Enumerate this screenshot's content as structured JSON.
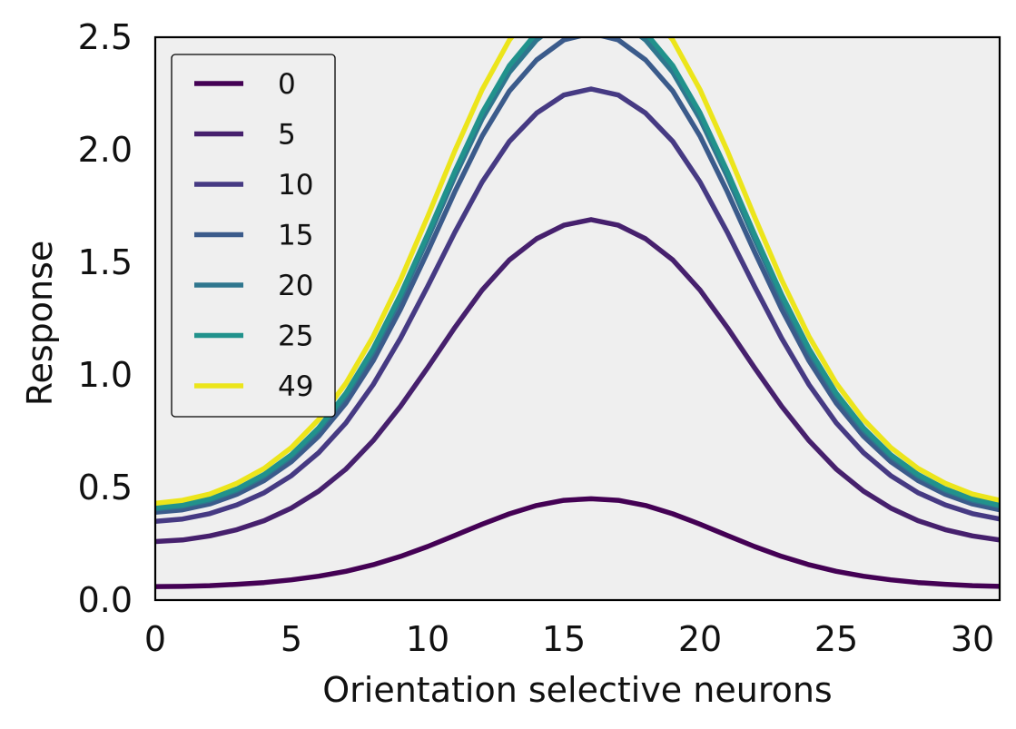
{
  "chart_data": {
    "type": "line",
    "xlabel": "Orientation selective neurons",
    "ylabel": "Response",
    "xlim": [
      0,
      31
    ],
    "ylim": [
      0,
      2.5
    ],
    "xticks": [
      0,
      5,
      10,
      15,
      20,
      25,
      30
    ],
    "yticks": [
      0.0,
      0.5,
      1.0,
      1.5,
      2.0,
      2.5
    ],
    "xtick_labels": [
      "0",
      "5",
      "10",
      "15",
      "20",
      "25",
      "30"
    ],
    "ytick_labels": [
      "0.0",
      "0.5",
      "1.0",
      "1.5",
      "2.0",
      "2.5"
    ],
    "grid": false,
    "plot_background": "#efefef",
    "legend_position": "upper-left",
    "x": [
      0,
      1,
      2,
      3,
      4,
      5,
      6,
      7,
      8,
      9,
      10,
      11,
      12,
      13,
      14,
      15,
      16,
      17,
      18,
      19,
      20,
      21,
      22,
      23,
      24,
      25,
      26,
      27,
      28,
      29,
      30,
      31
    ],
    "series": [
      {
        "name": "0",
        "color": "#440154",
        "values": [
          0.06,
          0.061,
          0.064,
          0.07,
          0.078,
          0.09,
          0.106,
          0.128,
          0.157,
          0.194,
          0.238,
          0.287,
          0.337,
          0.383,
          0.42,
          0.443,
          0.45,
          0.443,
          0.42,
          0.383,
          0.337,
          0.287,
          0.238,
          0.194,
          0.157,
          0.128,
          0.106,
          0.09,
          0.078,
          0.07,
          0.064,
          0.061
        ]
      },
      {
        "name": "5",
        "color": "#46206d",
        "values": [
          0.26,
          0.267,
          0.285,
          0.313,
          0.353,
          0.409,
          0.484,
          0.582,
          0.708,
          0.86,
          1.032,
          1.211,
          1.377,
          1.511,
          1.605,
          1.665,
          1.69,
          1.665,
          1.605,
          1.511,
          1.377,
          1.211,
          1.032,
          0.86,
          0.708,
          0.582,
          0.484,
          0.409,
          0.353,
          0.313,
          0.285,
          0.267
        ]
      },
      {
        "name": "10",
        "color": "#463a83",
        "values": [
          0.35,
          0.36,
          0.384,
          0.423,
          0.477,
          0.553,
          0.655,
          0.787,
          0.957,
          1.162,
          1.393,
          1.634,
          1.857,
          2.037,
          2.163,
          2.243,
          2.27,
          2.243,
          2.163,
          2.037,
          1.857,
          1.634,
          1.393,
          1.162,
          0.957,
          0.787,
          0.655,
          0.553,
          0.477,
          0.423,
          0.384,
          0.36
        ]
      },
      {
        "name": "15",
        "color": "#3b5b8b",
        "values": [
          0.39,
          0.401,
          0.427,
          0.47,
          0.531,
          0.615,
          0.728,
          0.875,
          1.063,
          1.291,
          1.547,
          1.814,
          2.061,
          2.261,
          2.399,
          2.488,
          2.518,
          2.488,
          2.399,
          2.261,
          2.061,
          1.814,
          1.547,
          1.291,
          1.063,
          0.875,
          0.728,
          0.615,
          0.531,
          0.47,
          0.427,
          0.401
        ]
      },
      {
        "name": "20",
        "color": "#2f768e",
        "values": [
          0.405,
          0.417,
          0.443,
          0.488,
          0.551,
          0.638,
          0.755,
          0.907,
          1.103,
          1.339,
          1.604,
          1.881,
          2.137,
          2.344,
          2.488,
          2.58,
          2.611,
          2.58,
          2.488,
          2.344,
          2.137,
          1.881,
          1.604,
          1.339,
          1.103,
          0.907,
          0.755,
          0.638,
          0.551,
          0.488,
          0.443,
          0.417
        ]
      },
      {
        "name": "25",
        "color": "#21928c",
        "values": [
          0.41,
          0.422,
          0.449,
          0.494,
          0.558,
          0.646,
          0.765,
          0.919,
          1.117,
          1.356,
          1.625,
          1.905,
          2.164,
          2.374,
          2.52,
          2.613,
          2.645,
          2.613,
          2.52,
          2.374,
          2.164,
          1.905,
          1.625,
          1.356,
          1.117,
          0.919,
          0.765,
          0.646,
          0.558,
          0.494,
          0.449,
          0.422
        ]
      },
      {
        "name": "49",
        "color": "#ece51b",
        "values": [
          0.43,
          0.443,
          0.471,
          0.519,
          0.585,
          0.678,
          0.802,
          0.963,
          1.171,
          1.421,
          1.703,
          1.996,
          2.267,
          2.487,
          2.639,
          2.737,
          2.77,
          2.737,
          2.639,
          2.487,
          2.267,
          1.996,
          1.703,
          1.421,
          1.171,
          0.963,
          0.802,
          0.678,
          0.585,
          0.519,
          0.471,
          0.443
        ]
      }
    ]
  }
}
